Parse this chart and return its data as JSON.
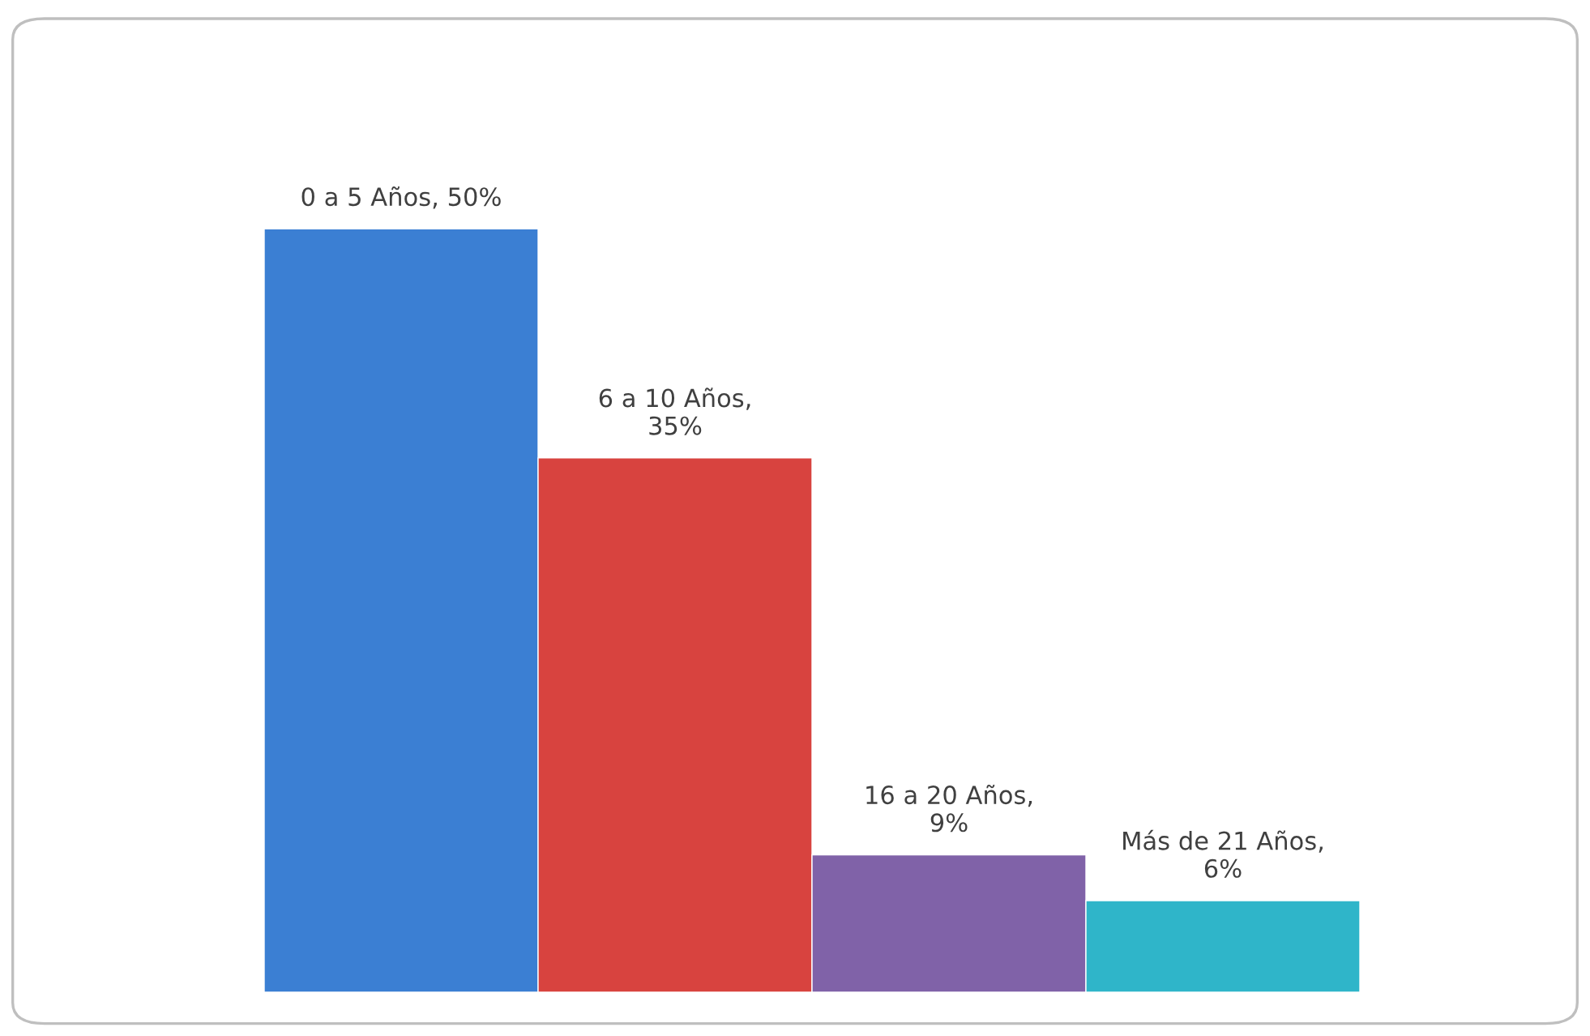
{
  "chart_data": {
    "type": "bar",
    "categories": [
      null,
      null,
      null,
      null
    ],
    "values": [
      50,
      35,
      9,
      6
    ],
    "colors": [
      "#3b7fd3",
      "#d8433f",
      "#8062a8",
      "#2fb5c9"
    ],
    "value_labels": [
      "0 a 5 Años, 50%",
      "6 a 10 Años, 35%",
      "16 a 20 Años, 9%",
      "Más de 21 Años, 6%"
    ],
    "legend": false
  }
}
